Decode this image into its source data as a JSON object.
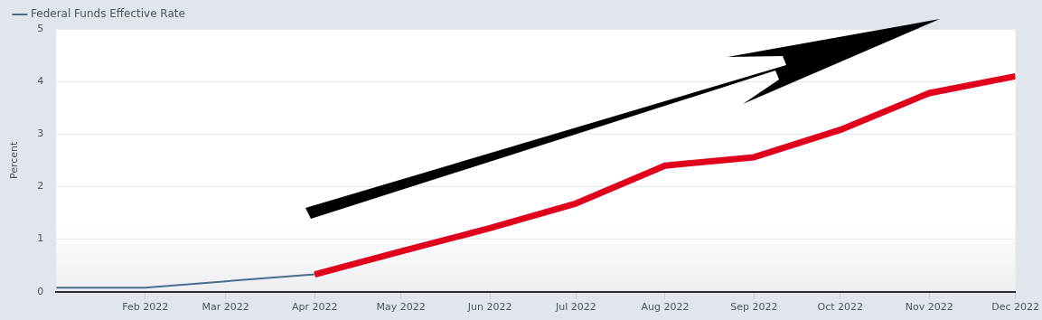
{
  "chart_data": {
    "type": "line",
    "ylabel": "Percent",
    "series": [
      {
        "name": "Federal Funds Effective Rate",
        "color": "#4a6d8c",
        "x": [
          "2022-01",
          "2022-02",
          "2022-03",
          "2022-04"
        ],
        "values": [
          0.08,
          0.08,
          0.2,
          0.33
        ]
      },
      {
        "color": "#e0001b",
        "x": [
          "2022-04",
          "2022-05",
          "2022-06",
          "2022-07",
          "2022-08",
          "2022-09",
          "2022-10",
          "2022-11",
          "2022-12"
        ],
        "values": [
          0.33,
          0.77,
          1.21,
          1.68,
          2.4,
          2.56,
          3.08,
          3.78,
          4.1
        ]
      }
    ],
    "xlim": [
      "2022-01",
      "2022-12"
    ],
    "xticks": [
      {
        "value": "2022-02",
        "label": "Feb 2022"
      },
      {
        "value": "2022-03",
        "label": "Mar 2022"
      },
      {
        "value": "2022-04",
        "label": "Apr 2022"
      },
      {
        "value": "2022-05",
        "label": "May 2022"
      },
      {
        "value": "2022-06",
        "label": "Jun 2022"
      },
      {
        "value": "2022-07",
        "label": "Jul 2022"
      },
      {
        "value": "2022-08",
        "label": "Aug 2022"
      },
      {
        "value": "2022-09",
        "label": "Sep 2022"
      },
      {
        "value": "2022-10",
        "label": "Oct 2022"
      },
      {
        "value": "2022-11",
        "label": "Nov 2022"
      },
      {
        "value": "2022-12",
        "label": "Dec 2022"
      }
    ],
    "ylim": [
      0,
      5
    ],
    "yticks": [
      0,
      1,
      2,
      3,
      4,
      5
    ],
    "grid": "y",
    "legend": "top left",
    "marker": "none",
    "line_style": "solid"
  }
}
